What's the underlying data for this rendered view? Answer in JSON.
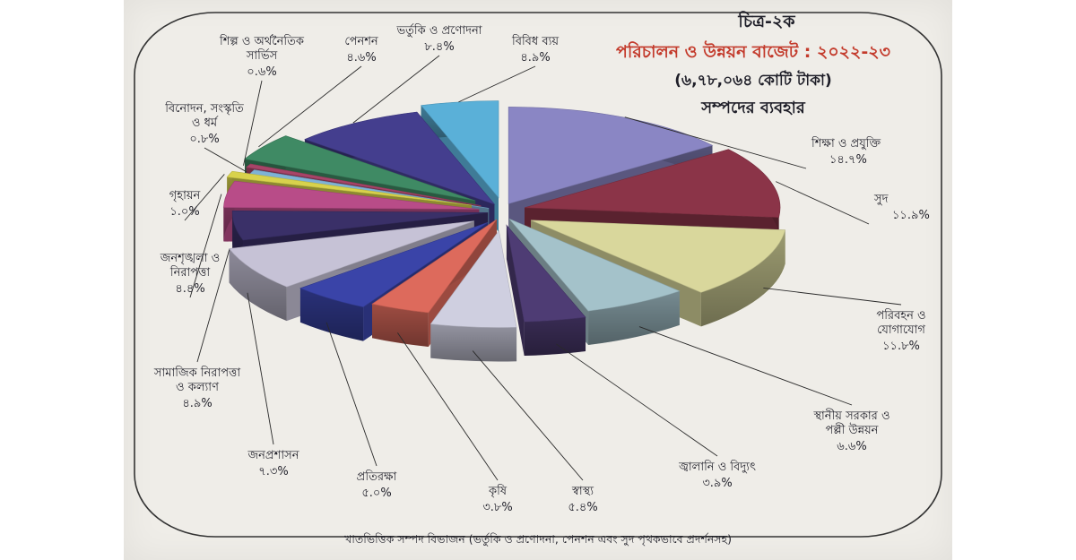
{
  "chart_data": {
    "type": "pie",
    "title_line1": "চিত্র-২ক",
    "title_line2": "পরিচালন ও উন্নয়ন বাজেট : ২০২২-২৩",
    "title_line3": "(৬,৭৮,০৬৪ কোটি টাকা)",
    "title_line4": "সম্পদের ব্যবহার",
    "caption": "খাতভিত্তিক সম্পদ বিভাজন (ভর্তুকি ও প্রণোদনা, পেনশন এবং সুদ পৃথকভাবে প্রদর্শনসহ)",
    "slices": [
      {
        "label": [
          "শিক্ষা ও প্রযুক্তি"
        ],
        "value_label": "১৪.৭%",
        "value": 14.7,
        "color": "#8a86c4"
      },
      {
        "label": [
          "সুদ"
        ],
        "value_label": "১১.৯%",
        "value": 11.9,
        "color": "#8b3448"
      },
      {
        "label": [
          "পরিবহন ও",
          "যোগাযোগ"
        ],
        "value_label": "১১.৮%",
        "value": 11.8,
        "color": "#d9d79c"
      },
      {
        "label": [
          "স্থানীয় সরকার ও",
          "পল্লী উন্নয়ন"
        ],
        "value_label": "৬.৬%",
        "value": 6.6,
        "color": "#a4c2ca"
      },
      {
        "label": [
          "জ্বালানি ও বিদ্যুৎ"
        ],
        "value_label": "৩.৯%",
        "value": 3.9,
        "color": "#4e3c74"
      },
      {
        "label": [
          "স্বাস্থ্য"
        ],
        "value_label": "৫.৪%",
        "value": 5.4,
        "color": "#cfcfe0"
      },
      {
        "label": [
          "কৃষি"
        ],
        "value_label": "৩.৮%",
        "value": 3.8,
        "color": "#dd6a5c"
      },
      {
        "label": [
          "প্রতিরক্ষা"
        ],
        "value_label": "৫.০%",
        "value": 5.0,
        "color": "#3a44a8"
      },
      {
        "label": [
          "জনপ্রশাসন"
        ],
        "value_label": "৭.৩%",
        "value": 7.3,
        "color": "#c6c2d6"
      },
      {
        "label": [
          "সামাজিক নিরাপত্তা",
          "ও কল্যাণ"
        ],
        "value_label": "৪.৯%",
        "value": 4.9,
        "color": "#3a3068"
      },
      {
        "label": [
          "জনশৃঙ্খলা ও",
          "নিরাপত্তা"
        ],
        "value_label": "৪.৪%",
        "value": 4.4,
        "color": "#b84c88"
      },
      {
        "label": [
          "গৃহায়ন"
        ],
        "value_label": "১.০%",
        "value": 1.0,
        "color": "#d8d24c"
      },
      {
        "label": [
          "বিনোদন, সংস্কৃতি",
          "ও ধর্ম"
        ],
        "value_label": "০.৮%",
        "value": 0.8,
        "color": "#7eb2d6"
      },
      {
        "label": [
          "শিল্প ও অর্থনৈতিক",
          "সার্ভিস"
        ],
        "value_label": "০.৬%",
        "value": 0.6,
        "color": "#a84468"
      },
      {
        "label": [
          "পেনশন"
        ],
        "value_label": "৪.৬%",
        "value": 4.6,
        "color": "#3f8a64"
      },
      {
        "label": [
          "ভর্তুকি ও প্রণোদনা"
        ],
        "value_label": "৮.৪%",
        "value": 8.4,
        "color": "#443e8e"
      },
      {
        "label": [
          "বিবিধ ব্যয়"
        ],
        "value_label": "৪.৯%",
        "value": 4.9,
        "color": "#5ab0d8"
      }
    ]
  }
}
